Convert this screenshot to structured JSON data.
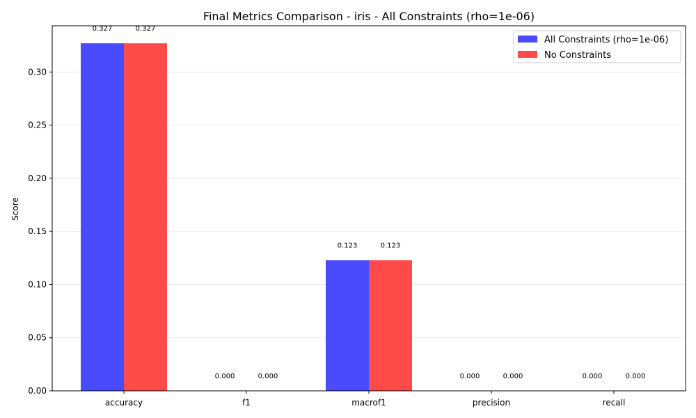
{
  "chart_data": {
    "type": "bar",
    "title": "Final Metrics Comparison - iris - All Constraints (rho=1e-06)",
    "xlabel": "",
    "ylabel": "Score",
    "categories": [
      "accuracy",
      "f1",
      "macrof1",
      "precision",
      "recall"
    ],
    "series": [
      {
        "name": "All Constraints (rho=1e-06)",
        "color": "#4a4aff",
        "values": [
          0.327,
          0.0,
          0.123,
          0.0,
          0.0
        ],
        "labels": [
          "0.327",
          "0.000",
          "0.123",
          "0.000",
          "0.000"
        ]
      },
      {
        "name": "No Constraints",
        "color": "#ff4a4a",
        "values": [
          0.327,
          0.0,
          0.123,
          0.0,
          0.0
        ],
        "labels": [
          "0.327",
          "0.000",
          "0.123",
          "0.000",
          "0.000"
        ]
      }
    ],
    "ylim": [
      0,
      0.3435
    ],
    "yticks": [
      0.0,
      0.05,
      0.1,
      0.15,
      0.2,
      0.25,
      0.3
    ],
    "ytick_labels": [
      "0.00",
      "0.05",
      "0.10",
      "0.15",
      "0.20",
      "0.25",
      "0.30"
    ],
    "grid": "y",
    "legend": "top-right"
  }
}
